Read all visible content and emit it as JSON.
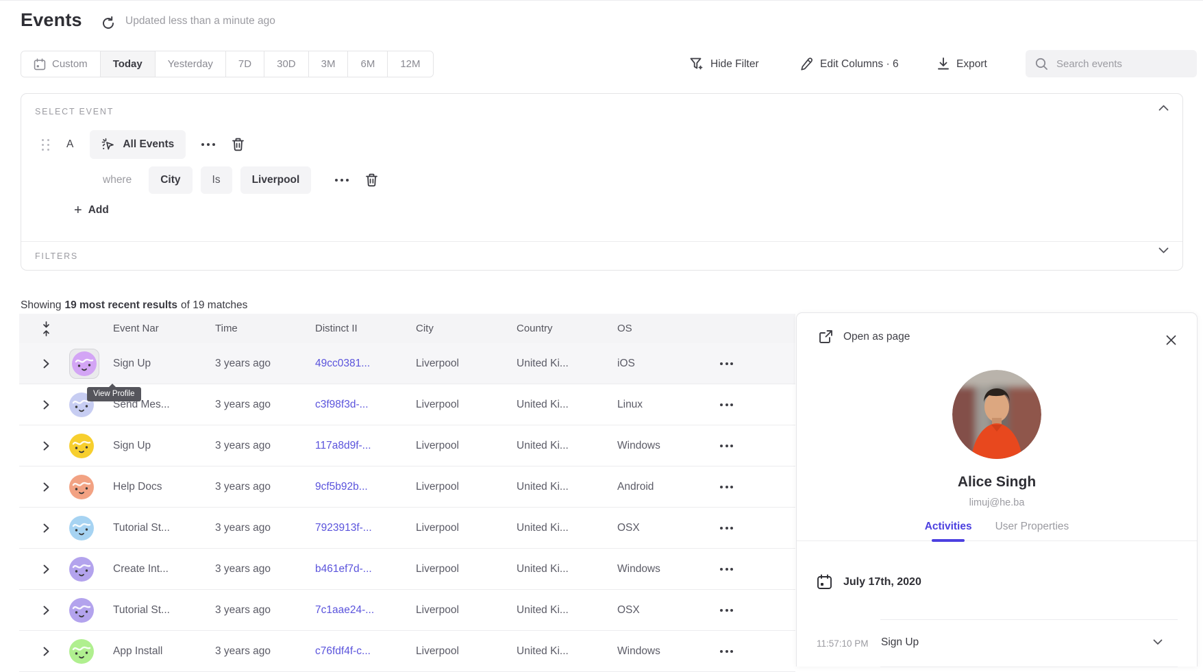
{
  "page": {
    "title": "Events",
    "updated": "Updated less than a minute ago"
  },
  "toolbar": {
    "date_ranges": [
      "Custom",
      "Today",
      "Yesterday",
      "7D",
      "30D",
      "3M",
      "6M",
      "12M"
    ],
    "active_range": "Today",
    "hide_filter": "Hide Filter",
    "edit_columns": "Edit Columns · 6",
    "export": "Export",
    "search_placeholder": "Search events"
  },
  "query_builder": {
    "section_label": "SELECT EVENT",
    "row_letter": "A",
    "event_name": "All Events",
    "where_label": "where",
    "property": "City",
    "operator": "Is",
    "value": "Liverpool",
    "add_label": "Add",
    "filters_label": "FILTERS"
  },
  "results": {
    "prefix": "Showing",
    "bold": "19 most recent results",
    "suffix": "of 19 matches"
  },
  "table": {
    "columns": [
      "Event Nar",
      "Time",
      "Distinct II",
      "City",
      "Country",
      "OS"
    ],
    "rows": [
      {
        "event": "Sign Up",
        "time": "3 years ago",
        "distinct_id": "49cc0381...",
        "city": "Liverpool",
        "country": "United Ki...",
        "os": "iOS",
        "avatar_color": "#d3a5f5",
        "selected": true
      },
      {
        "event": "Send Mes...",
        "time": "3 years ago",
        "distinct_id": "c3f98f3d-...",
        "city": "Liverpool",
        "country": "United Ki...",
        "os": "Linux",
        "avatar_color": "#c7cdf2",
        "selected": false
      },
      {
        "event": "Sign Up",
        "time": "3 years ago",
        "distinct_id": "117a8d9f-...",
        "city": "Liverpool",
        "country": "United Ki...",
        "os": "Windows",
        "avatar_color": "#f7cf2e",
        "selected": false
      },
      {
        "event": "Help Docs",
        "time": "3 years ago",
        "distinct_id": "9cf5b92b...",
        "city": "Liverpool",
        "country": "United Ki...",
        "os": "Android",
        "avatar_color": "#f2a283",
        "selected": false
      },
      {
        "event": "Tutorial St...",
        "time": "3 years ago",
        "distinct_id": "7923913f-...",
        "city": "Liverpool",
        "country": "United Ki...",
        "os": "OSX",
        "avatar_color": "#a6d3f2",
        "selected": false
      },
      {
        "event": "Create Int...",
        "time": "3 years ago",
        "distinct_id": "b461ef7d-...",
        "city": "Liverpool",
        "country": "United Ki...",
        "os": "Windows",
        "avatar_color": "#b3a3ed",
        "selected": false
      },
      {
        "event": "Tutorial St...",
        "time": "3 years ago",
        "distinct_id": "7c1aae24-...",
        "city": "Liverpool",
        "country": "United Ki...",
        "os": "OSX",
        "avatar_color": "#b3a3ed",
        "selected": false
      },
      {
        "event": "App Install",
        "time": "3 years ago",
        "distinct_id": "c76fdf4f-c...",
        "city": "Liverpool",
        "country": "United Ki...",
        "os": "Windows",
        "avatar_color": "#b0ef8f",
        "selected": false
      }
    ]
  },
  "tooltip": {
    "label": "View Profile"
  },
  "profile_panel": {
    "open_as_page": "Open as page",
    "name": "Alice Singh",
    "email": "limuj@he.ba",
    "tabs": [
      "Activities",
      "User Properties"
    ],
    "active_tab": "Activities",
    "date": "July 17th, 2020",
    "activity": {
      "time": "11:57:10 PM",
      "event": "Sign Up"
    }
  },
  "colors": {
    "accent": "#4c40e0",
    "link": "#5a53dc"
  }
}
